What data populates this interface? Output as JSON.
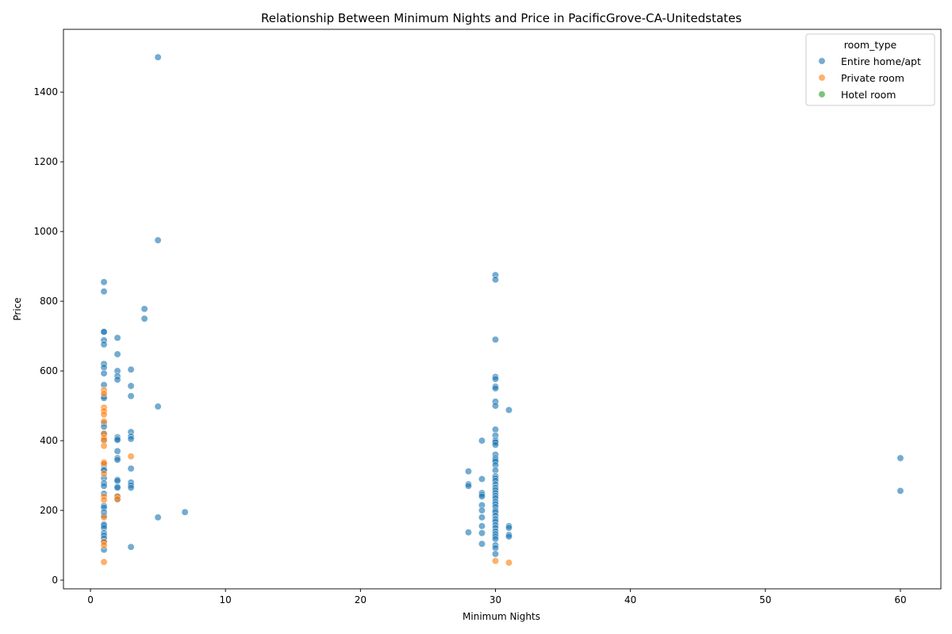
{
  "chart_data": {
    "type": "scatter",
    "title": "Relationship Between Minimum Nights and Price in PacificGrove-CA-Unitedstates",
    "xlabel": "Minimum Nights",
    "ylabel": "Price",
    "xlim": [
      -2,
      63
    ],
    "ylim": [
      -25,
      1580
    ],
    "xticks": [
      0,
      10,
      20,
      30,
      40,
      50,
      60
    ],
    "yticks": [
      0,
      200,
      400,
      600,
      800,
      1000,
      1200,
      1400
    ],
    "grid": false,
    "legend": {
      "title": "room_type",
      "placement": "top-right",
      "entries": [
        "Entire home/apt",
        "Private room",
        "Hotel room"
      ]
    },
    "series": [
      {
        "name": "Entire home/apt",
        "color": "#1f77b4",
        "points": [
          [
            1,
            855
          ],
          [
            1,
            828
          ],
          [
            1,
            713
          ],
          [
            1,
            712
          ],
          [
            1,
            688
          ],
          [
            1,
            676
          ],
          [
            1,
            620
          ],
          [
            1,
            610
          ],
          [
            1,
            593
          ],
          [
            1,
            560
          ],
          [
            1,
            527
          ],
          [
            1,
            522
          ],
          [
            1,
            450
          ],
          [
            1,
            440
          ],
          [
            1,
            420
          ],
          [
            1,
            400
          ],
          [
            1,
            330
          ],
          [
            1,
            318
          ],
          [
            1,
            315
          ],
          [
            1,
            293
          ],
          [
            1,
            278
          ],
          [
            1,
            270
          ],
          [
            1,
            248
          ],
          [
            1,
            213
          ],
          [
            1,
            208
          ],
          [
            1,
            195
          ],
          [
            1,
            185
          ],
          [
            1,
            160
          ],
          [
            1,
            157
          ],
          [
            1,
            150
          ],
          [
            1,
            135
          ],
          [
            1,
            128
          ],
          [
            1,
            120
          ],
          [
            1,
            110
          ],
          [
            1,
            87
          ],
          [
            2,
            695
          ],
          [
            2,
            648
          ],
          [
            2,
            600
          ],
          [
            2,
            585
          ],
          [
            2,
            575
          ],
          [
            2,
            410
          ],
          [
            2,
            405
          ],
          [
            2,
            402
          ],
          [
            2,
            370
          ],
          [
            2,
            350
          ],
          [
            2,
            345
          ],
          [
            2,
            288
          ],
          [
            2,
            285
          ],
          [
            2,
            268
          ],
          [
            2,
            265
          ],
          [
            2,
            240
          ],
          [
            2,
            232
          ],
          [
            3,
            604
          ],
          [
            3,
            557
          ],
          [
            3,
            528
          ],
          [
            3,
            425
          ],
          [
            3,
            412
          ],
          [
            3,
            405
          ],
          [
            3,
            320
          ],
          [
            3,
            280
          ],
          [
            3,
            272
          ],
          [
            3,
            265
          ],
          [
            3,
            95
          ],
          [
            4,
            778
          ],
          [
            4,
            750
          ],
          [
            5,
            1500
          ],
          [
            5,
            975
          ],
          [
            5,
            498
          ],
          [
            5,
            180
          ],
          [
            7,
            195
          ],
          [
            28,
            312
          ],
          [
            28,
            275
          ],
          [
            28,
            270
          ],
          [
            28,
            137
          ],
          [
            29,
            400
          ],
          [
            29,
            290
          ],
          [
            29,
            250
          ],
          [
            29,
            245
          ],
          [
            29,
            240
          ],
          [
            29,
            215
          ],
          [
            29,
            200
          ],
          [
            29,
            180
          ],
          [
            29,
            155
          ],
          [
            29,
            135
          ],
          [
            29,
            104
          ],
          [
            30,
            875
          ],
          [
            30,
            862
          ],
          [
            30,
            690
          ],
          [
            30,
            583
          ],
          [
            30,
            577
          ],
          [
            30,
            555
          ],
          [
            30,
            550
          ],
          [
            30,
            512
          ],
          [
            30,
            500
          ],
          [
            30,
            432
          ],
          [
            30,
            415
          ],
          [
            30,
            402
          ],
          [
            30,
            398
          ],
          [
            30,
            395
          ],
          [
            30,
            388
          ],
          [
            30,
            360
          ],
          [
            30,
            350
          ],
          [
            30,
            345
          ],
          [
            30,
            340
          ],
          [
            30,
            330
          ],
          [
            30,
            315
          ],
          [
            30,
            298
          ],
          [
            30,
            292
          ],
          [
            30,
            285
          ],
          [
            30,
            275
          ],
          [
            30,
            265
          ],
          [
            30,
            258
          ],
          [
            30,
            250
          ],
          [
            30,
            242
          ],
          [
            30,
            235
          ],
          [
            30,
            225
          ],
          [
            30,
            218
          ],
          [
            30,
            210
          ],
          [
            30,
            200
          ],
          [
            30,
            195
          ],
          [
            30,
            185
          ],
          [
            30,
            175
          ],
          [
            30,
            168
          ],
          [
            30,
            158
          ],
          [
            30,
            150
          ],
          [
            30,
            140
          ],
          [
            30,
            132
          ],
          [
            30,
            125
          ],
          [
            30,
            118
          ],
          [
            30,
            100
          ],
          [
            30,
            92
          ],
          [
            30,
            75
          ],
          [
            31,
            488
          ],
          [
            31,
            155
          ],
          [
            31,
            150
          ],
          [
            31,
            130
          ],
          [
            31,
            125
          ],
          [
            60,
            350
          ],
          [
            60,
            256
          ]
        ]
      },
      {
        "name": "Private room",
        "color": "#ff7f0e",
        "points": [
          [
            1,
            545
          ],
          [
            1,
            535
          ],
          [
            1,
            495
          ],
          [
            1,
            485
          ],
          [
            1,
            475
          ],
          [
            1,
            455
          ],
          [
            1,
            420
          ],
          [
            1,
            408
          ],
          [
            1,
            402
          ],
          [
            1,
            385
          ],
          [
            1,
            338
          ],
          [
            1,
            335
          ],
          [
            1,
            305
          ],
          [
            1,
            240
          ],
          [
            1,
            230
          ],
          [
            1,
            180
          ],
          [
            1,
            110
          ],
          [
            1,
            100
          ],
          [
            1,
            52
          ],
          [
            2,
            240
          ],
          [
            2,
            232
          ],
          [
            3,
            355
          ],
          [
            30,
            55
          ],
          [
            31,
            50
          ]
        ]
      },
      {
        "name": "Hotel room",
        "color": "#2ca02c",
        "points": []
      }
    ]
  }
}
